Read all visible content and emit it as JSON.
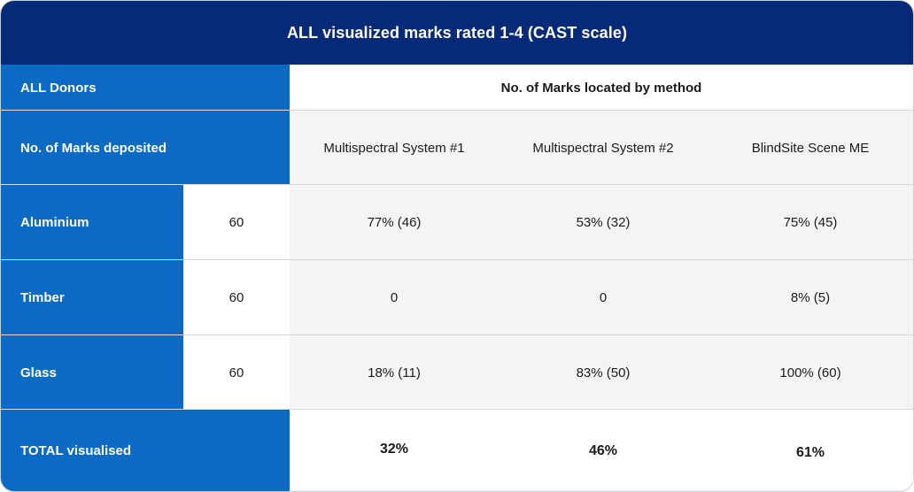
{
  "chart_data": {
    "type": "table",
    "title": "ALL visualized marks rated 1-4 (CAST scale)",
    "header_row_1": {
      "left": "ALL Donors",
      "right": "No. of Marks located by method"
    },
    "header_row_2": {
      "left": "No. of Marks deposited",
      "methods": [
        "Multispectral System #1",
        "Multispectral System #2",
        "BlindSite Scene ME"
      ]
    },
    "rows": [
      {
        "surface": "Aluminium",
        "deposited": "60",
        "values": [
          "77% (46)",
          "53% (32)",
          "75% (45)"
        ]
      },
      {
        "surface": "Timber",
        "deposited": "60",
        "values": [
          "0",
          "0",
          "8% (5)"
        ]
      },
      {
        "surface": "Glass",
        "deposited": "60",
        "values": [
          "18% (11)",
          "83% (50)",
          "100% (60)"
        ]
      }
    ],
    "total": {
      "label": "TOTAL visualised",
      "values": [
        "32%",
        "46%",
        "61%"
      ]
    }
  },
  "colors": {
    "title_bg": "#072a78",
    "label_bg": "#0a6ac4"
  }
}
